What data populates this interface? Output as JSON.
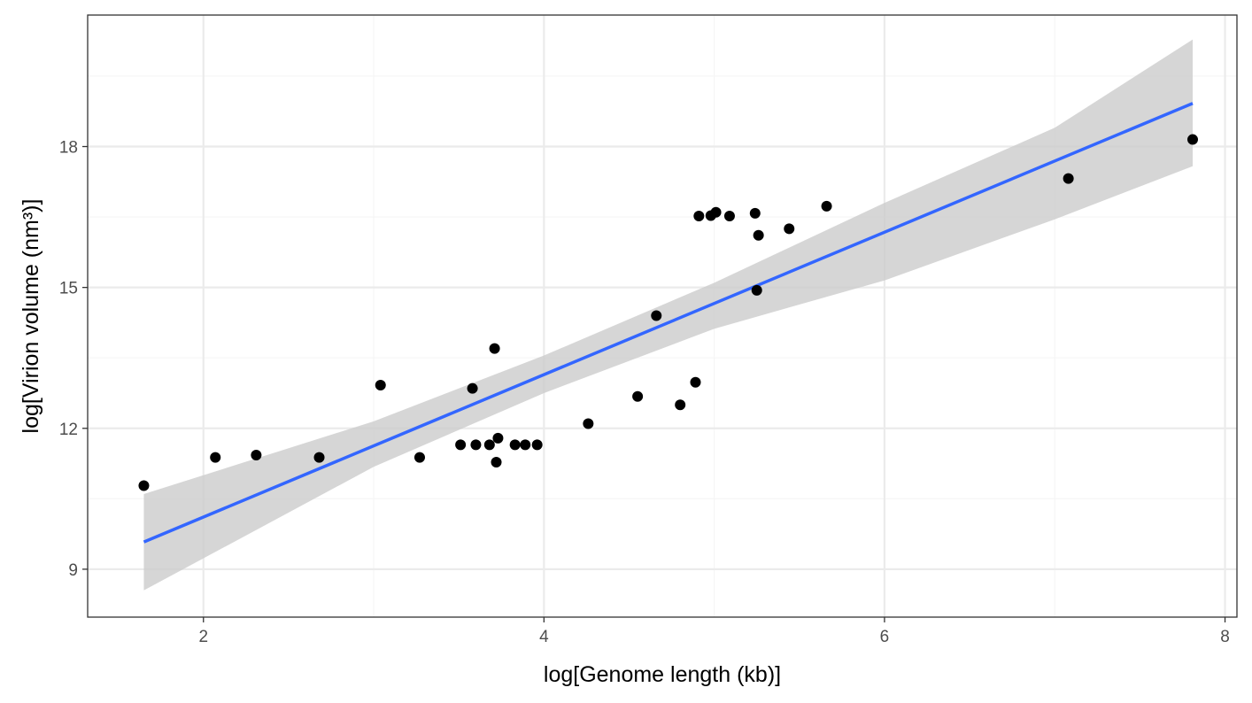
{
  "chart_data": {
    "type": "scatter",
    "title": "",
    "xlabel": "log[Genome length (kb)]",
    "ylabel": "log[Virion volume (nm³)]",
    "xlim": [
      1.32,
      8.07
    ],
    "ylim": [
      7.98,
      20.8
    ],
    "x_ticks": [
      2,
      4,
      6,
      8
    ],
    "y_ticks": [
      9,
      12,
      15,
      18
    ],
    "x_minor_ticks": [
      3,
      5,
      7
    ],
    "y_minor_ticks": [
      10.5,
      13.5,
      16.5,
      19.5
    ],
    "grid": true,
    "legend": "none",
    "points": [
      {
        "x": 1.65,
        "y": 10.78
      },
      {
        "x": 2.07,
        "y": 11.38
      },
      {
        "x": 2.31,
        "y": 11.43
      },
      {
        "x": 2.68,
        "y": 11.38
      },
      {
        "x": 3.04,
        "y": 12.92
      },
      {
        "x": 3.27,
        "y": 11.38
      },
      {
        "x": 3.51,
        "y": 11.65
      },
      {
        "x": 3.58,
        "y": 12.85
      },
      {
        "x": 3.6,
        "y": 11.65
      },
      {
        "x": 3.68,
        "y": 11.65
      },
      {
        "x": 3.71,
        "y": 13.7
      },
      {
        "x": 3.72,
        "y": 11.28
      },
      {
        "x": 3.73,
        "y": 11.79
      },
      {
        "x": 3.83,
        "y": 11.65
      },
      {
        "x": 3.89,
        "y": 11.65
      },
      {
        "x": 3.96,
        "y": 11.65
      },
      {
        "x": 4.26,
        "y": 12.1
      },
      {
        "x": 4.55,
        "y": 12.68
      },
      {
        "x": 4.66,
        "y": 14.4
      },
      {
        "x": 4.8,
        "y": 12.5
      },
      {
        "x": 4.89,
        "y": 12.98
      },
      {
        "x": 4.91,
        "y": 16.52
      },
      {
        "x": 4.98,
        "y": 16.53
      },
      {
        "x": 5.01,
        "y": 16.6
      },
      {
        "x": 5.09,
        "y": 16.52
      },
      {
        "x": 5.24,
        "y": 16.58
      },
      {
        "x": 5.25,
        "y": 14.94
      },
      {
        "x": 5.26,
        "y": 16.11
      },
      {
        "x": 5.44,
        "y": 16.25
      },
      {
        "x": 5.66,
        "y": 16.73
      },
      {
        "x": 7.08,
        "y": 17.32
      },
      {
        "x": 7.81,
        "y": 18.15
      }
    ],
    "fit_line": {
      "type": "linear",
      "color": "#3366ff",
      "x": [
        1.65,
        7.81
      ],
      "y": [
        9.58,
        18.92
      ]
    },
    "confidence_band": {
      "color": "#cccccc",
      "x": [
        1.65,
        3.0,
        4.0,
        5.0,
        6.0,
        7.0,
        7.81
      ],
      "lower": [
        8.55,
        11.18,
        12.75,
        14.12,
        15.15,
        16.45,
        17.58
      ],
      "upper": [
        10.6,
        12.15,
        13.55,
        15.1,
        16.8,
        18.4,
        20.28
      ]
    },
    "colors": {
      "point": "#000000",
      "panel_border": "#333333",
      "grid_major": "#ebebeb",
      "grid_minor": "#f5f5f5",
      "tick": "#333333"
    }
  }
}
